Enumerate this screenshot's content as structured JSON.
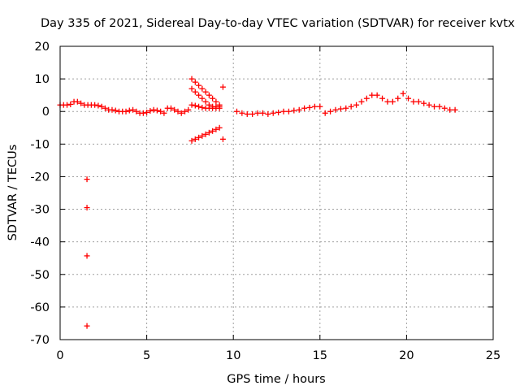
{
  "chart_data": {
    "type": "scatter",
    "title": "Day 335 of 2021, Sidereal Day-to-day VTEC variation (SDTVAR) for receiver kvtx",
    "xlabel": "GPS time / hours",
    "ylabel": "SDTVAR / TECUs",
    "xlim": [
      0,
      25
    ],
    "ylim": [
      -70,
      20
    ],
    "xticks": [
      "0",
      "5",
      "10",
      "15",
      "20",
      "25"
    ],
    "yticks": [
      "20",
      "10",
      "0",
      "-10",
      "-20",
      "-30",
      "-40",
      "-50",
      "-60",
      "-70"
    ],
    "grid": true,
    "marker": "+",
    "color": "#ff0000",
    "series": [
      {
        "name": "SDTVAR",
        "x": [
          0.0,
          0.2,
          0.4,
          0.6,
          0.8,
          1.0,
          1.2,
          1.4,
          1.6,
          1.8,
          2.0,
          2.2,
          2.4,
          2.6,
          2.8,
          3.0,
          3.2,
          3.4,
          3.6,
          3.8,
          4.0,
          4.2,
          4.4,
          4.6,
          4.8,
          5.0,
          5.2,
          5.4,
          5.6,
          5.8,
          6.0,
          6.2,
          6.4,
          6.6,
          6.8,
          7.0,
          7.2,
          7.4,
          7.6,
          7.8,
          8.0,
          8.2,
          8.4,
          8.6,
          8.8,
          9.0,
          9.2,
          7.6,
          7.8,
          8.0,
          8.2,
          8.4,
          8.6,
          8.8,
          9.0,
          9.2,
          7.6,
          7.8,
          8.0,
          8.2,
          8.4,
          8.6,
          8.8,
          9.0,
          9.2,
          7.6,
          7.8,
          8.0,
          8.2,
          8.4,
          8.6,
          8.8,
          9.0,
          9.2,
          9.4,
          9.4,
          10.2,
          10.5,
          10.8,
          11.1,
          11.4,
          11.7,
          12.0,
          12.3,
          12.6,
          12.9,
          13.2,
          13.5,
          13.8,
          14.1,
          14.4,
          14.7,
          15.0,
          15.3,
          15.6,
          15.9,
          16.2,
          16.5,
          16.8,
          17.1,
          17.4,
          17.7,
          18.0,
          18.3,
          18.6,
          18.9,
          19.2,
          19.5,
          19.8,
          20.1,
          20.4,
          20.7,
          21.0,
          21.3,
          21.6,
          21.9,
          22.2,
          22.5,
          22.8,
          1.55,
          1.55,
          1.55,
          1.55
        ],
        "y": [
          2,
          2,
          2,
          2.2,
          3,
          3,
          2.5,
          2,
          2,
          2,
          2,
          1.8,
          1.5,
          1,
          0.5,
          0.5,
          0.3,
          0,
          0,
          0,
          0.3,
          0.5,
          0,
          -0.5,
          -0.5,
          -0.3,
          0.2,
          0.5,
          0.3,
          0,
          -0.5,
          1,
          1,
          0.5,
          0,
          -0.5,
          0,
          0.5,
          10,
          9,
          8,
          7,
          6,
          5,
          4,
          3,
          2,
          7,
          6,
          5,
          4,
          3,
          2,
          1.5,
          1.5,
          1.5,
          2,
          1.8,
          1.5,
          1.2,
          1,
          1,
          1,
          1,
          1,
          -9,
          -8.5,
          -8,
          -7.5,
          -7,
          -6.5,
          -6,
          -5.5,
          -5,
          7.5,
          -8.5,
          0,
          -0.5,
          -0.8,
          -0.8,
          -0.5,
          -0.5,
          -0.8,
          -0.5,
          -0.3,
          0,
          0,
          0.3,
          0.5,
          1,
          1.2,
          1.5,
          1.5,
          -0.5,
          0,
          0.5,
          0.8,
          1,
          1.5,
          2,
          3,
          4,
          5,
          5,
          4,
          3,
          3,
          4,
          5.5,
          4,
          3,
          3,
          2.5,
          2,
          1.5,
          1.5,
          1,
          0.5,
          0.5,
          -20.8,
          -29.5,
          -44.3,
          -65.8
        ]
      }
    ]
  }
}
